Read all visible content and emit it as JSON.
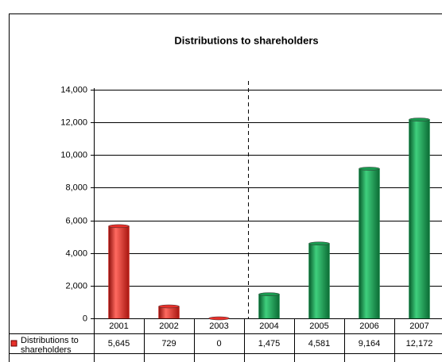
{
  "chart_data": {
    "type": "bar",
    "title": "Distributions to shareholders",
    "categories": [
      "2001",
      "2002",
      "2003",
      "2004",
      "2005",
      "2006",
      "2007"
    ],
    "series": [
      {
        "name": "Distributions to shareholders",
        "values": [
          5645,
          729,
          0,
          1475,
          4581,
          9164,
          12172
        ],
        "value_labels": [
          "5,645",
          "729",
          "0",
          "1,475",
          "4,581",
          "9,164",
          "12,172"
        ],
        "colors": [
          "#e8302a",
          "#e8302a",
          "#e8302a",
          "#1a9a50",
          "#1a9a50",
          "#1a9a50",
          "#1a9a50"
        ],
        "color": "#e8302a"
      }
    ],
    "ylim": [
      0,
      14000
    ],
    "yticks": [
      0,
      {
        "value": 2000,
        "label": "2,000"
      },
      {
        "value": 4000,
        "label": "4,000"
      },
      {
        "value": 6000,
        "label": "6,000"
      },
      {
        "value": 8000,
        "label": "8,000"
      },
      {
        "value": 10000,
        "label": "10,000"
      },
      {
        "value": 12000,
        "label": "12,000"
      },
      {
        "value": 14000,
        "label": "14,000"
      }
    ],
    "grid": true
  }
}
